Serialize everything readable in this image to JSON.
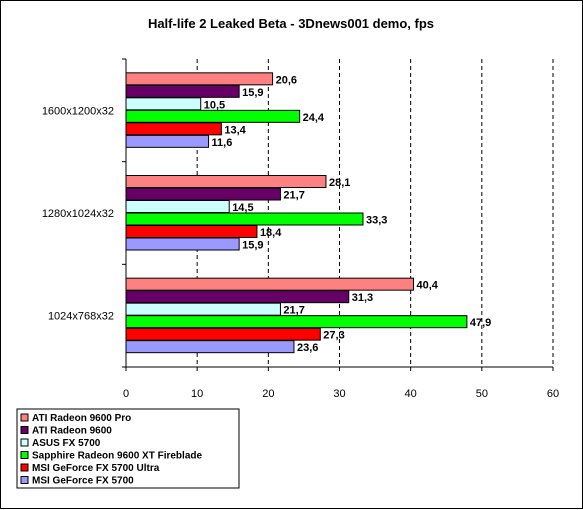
{
  "chart_data": {
    "type": "bar",
    "orientation": "horizontal",
    "title": "Half-life 2 Leaked Beta - 3Dnews001 demo, fps",
    "xlabel": "",
    "ylabel": "",
    "xlim": [
      0,
      60
    ],
    "xticks": [
      0,
      10,
      20,
      30,
      40,
      50,
      60
    ],
    "grid": "vertical-dashed",
    "legend_position": "bottom-left",
    "categories": [
      "1600x1200x32",
      "1280x1024x32",
      "1024x768x32"
    ],
    "series": [
      {
        "name": "ATI Radeon 9600 Pro",
        "color": "#ff8080",
        "values": [
          20.6,
          28.1,
          40.4
        ],
        "labels": [
          "20,6",
          "28,1",
          "40,4"
        ]
      },
      {
        "name": "ATI Radeon 9600",
        "color": "#660066",
        "values": [
          15.9,
          21.7,
          31.3
        ],
        "labels": [
          "15,9",
          "21,7",
          "31,3"
        ]
      },
      {
        "name": "ASUS FX 5700",
        "color": "#ccffff",
        "values": [
          10.5,
          14.5,
          21.7
        ],
        "labels": [
          "10,5",
          "14,5",
          "21,7"
        ]
      },
      {
        "name": "Sapphire Radeon 9600 XT Fireblade",
        "color": "#00ff00",
        "values": [
          24.4,
          33.3,
          47.9
        ],
        "labels": [
          "24,4",
          "33,3",
          "47,9"
        ]
      },
      {
        "name": "MSI GeForce FX 5700 Ultra",
        "color": "#ff0000",
        "values": [
          13.4,
          18.4,
          27.3
        ],
        "labels": [
          "13,4",
          "18,4",
          "27,3"
        ]
      },
      {
        "name": "MSI GeForce FX 5700",
        "color": "#9999ff",
        "values": [
          11.6,
          15.9,
          23.6
        ],
        "labels": [
          "11,6",
          "15,9",
          "23,6"
        ]
      }
    ]
  }
}
